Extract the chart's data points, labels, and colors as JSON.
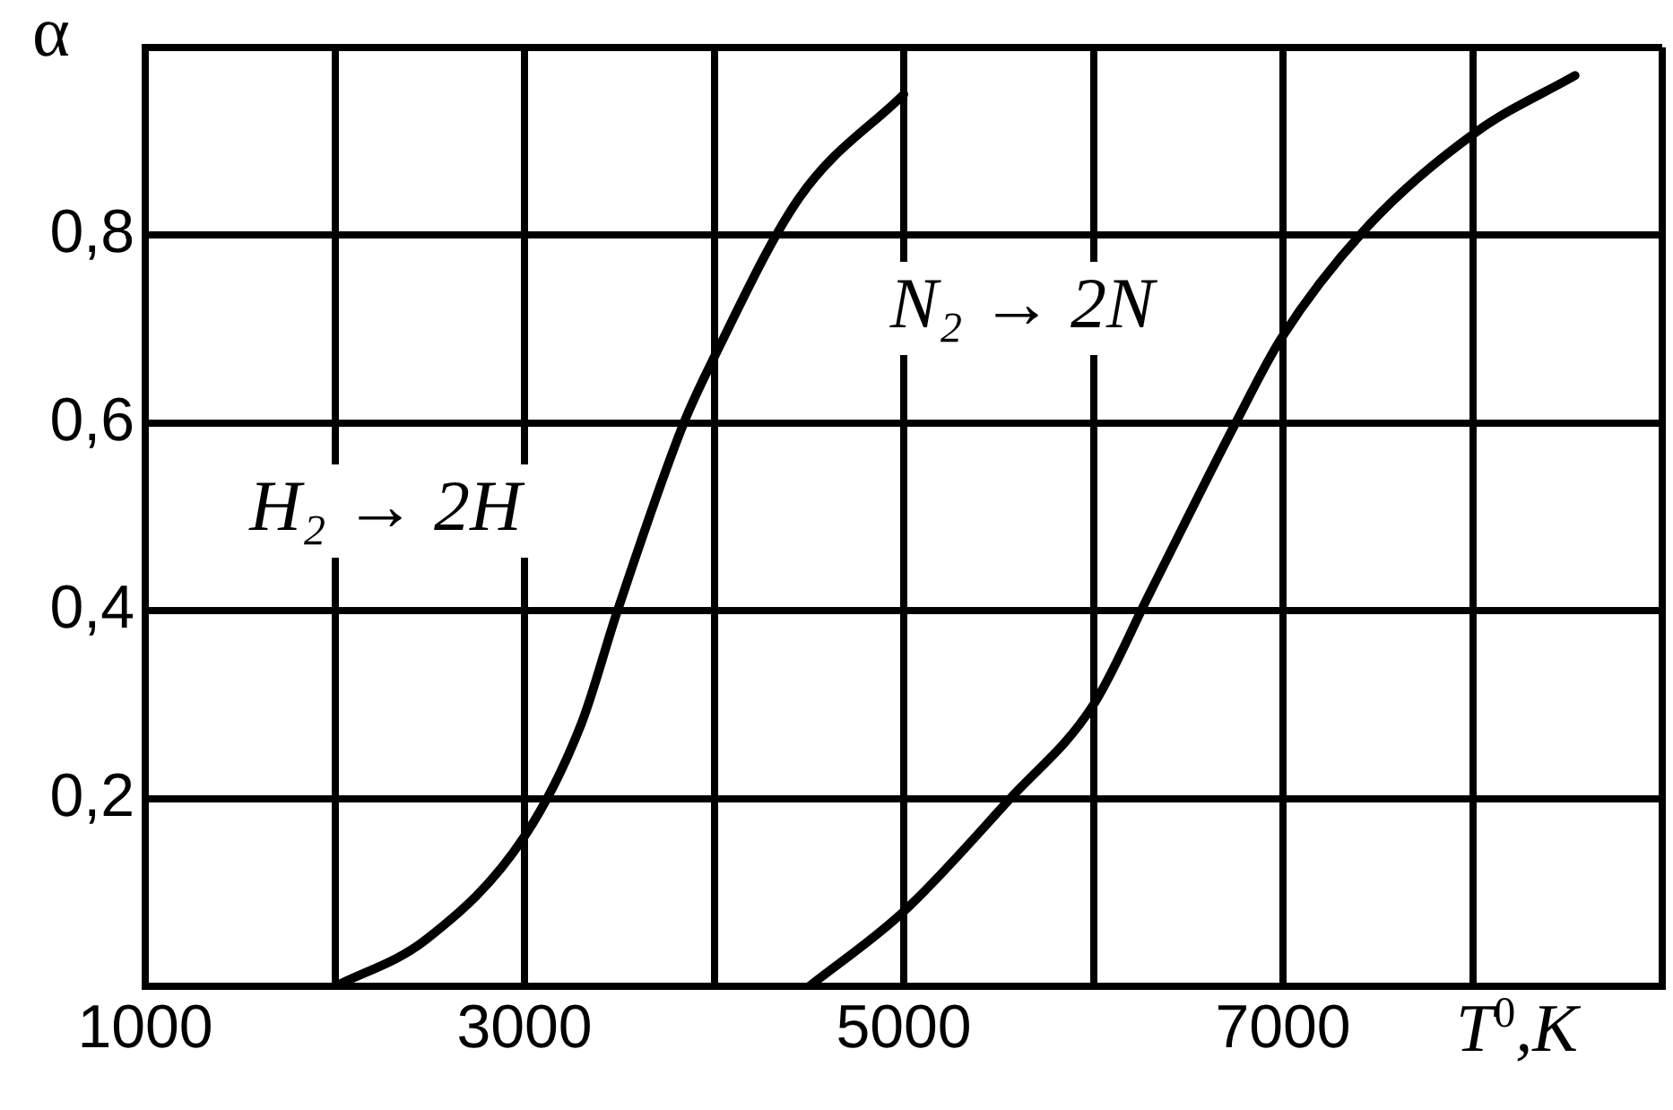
{
  "chart_data": {
    "type": "line",
    "xlabel": "T$^{0}$,K",
    "ylabel": "α",
    "xlim": [
      1000,
      9000
    ],
    "ylim": [
      0,
      1
    ],
    "xticks": [
      1000,
      {
        "value": 2000,
        "label": null
      },
      3000,
      {
        "value": 4000,
        "label": null
      },
      5000,
      {
        "value": 6000,
        "label": null
      },
      7000,
      {
        "value": 8000,
        "label": null
      },
      {
        "value": 9000,
        "label": null
      }
    ],
    "yticks": [
      {
        "value": 0,
        "label": null
      },
      {
        "value": 0.2,
        "label": "0,2"
      },
      {
        "value": 0.4,
        "label": "0,4"
      },
      {
        "value": 0.6,
        "label": "0,6"
      },
      {
        "value": 0.8,
        "label": "0,8"
      },
      {
        "value": 1,
        "label": null
      }
    ],
    "grid": true,
    "legend": false,
    "marker": "none",
    "line_style": "solid",
    "series": [
      {
        "name": "H₂ → 2H",
        "color": "#000000",
        "x": [
          2000,
          2480,
          3000,
          3300,
          3490,
          3840,
          4000,
          4450,
          5000
        ],
        "values": [
          0,
          0.05,
          0.16,
          0.28,
          0.4,
          0.6,
          0.67,
          0.84,
          0.95
        ]
      },
      {
        "name": "N₂ → 2N",
        "color": "#000000",
        "x": [
          4500,
          5000,
          5560,
          6000,
          6300,
          6750,
          6990,
          7450,
          8020,
          8540
        ],
        "values": [
          0,
          0.08,
          0.2,
          0.3,
          0.42,
          0.6,
          0.69,
          0.81,
          0.91,
          0.97
        ]
      }
    ]
  }
}
